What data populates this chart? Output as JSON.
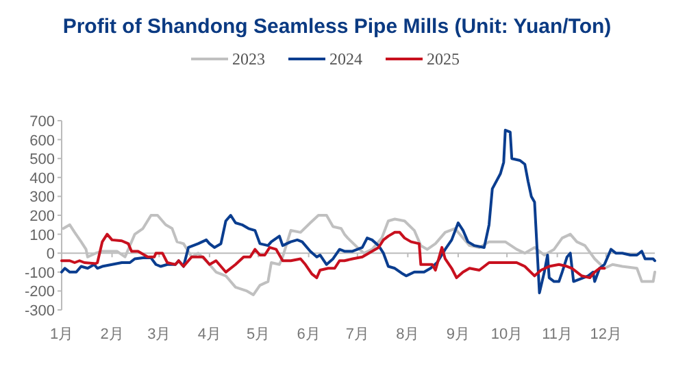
{
  "chart_data": {
    "type": "line",
    "title": "Profit of Shandong Seamless Pipe Mills (Unit: Yuan/Ton)",
    "legend": "top",
    "xlim": [
      "--01-01",
      "--12-31"
    ],
    "ylim": [
      -300,
      700
    ],
    "yticks": [
      -300,
      -200,
      -100,
      0,
      100,
      200,
      300,
      400,
      500,
      600,
      700
    ],
    "xticks": [
      {
        "value": "--01-01",
        "label": "1月"
      },
      {
        "value": "--02-01",
        "label": "2月"
      },
      {
        "value": "--03-01",
        "label": "3月"
      },
      {
        "value": "--04-01",
        "label": "4月"
      },
      {
        "value": "--05-01",
        "label": "5月"
      },
      {
        "value": "--06-01",
        "label": "6月"
      },
      {
        "value": "--07-01",
        "label": "7月"
      },
      {
        "value": "--08-01",
        "label": "8月"
      },
      {
        "value": "--09-01",
        "label": "9月"
      },
      {
        "value": "--10-01",
        "label": "10月"
      },
      {
        "value": "--11-01",
        "label": "11月"
      },
      {
        "value": "--12-01",
        "label": "12月"
      }
    ],
    "series": [
      {
        "name": "2023",
        "color": "#c0c0c0",
        "x": [
          "--01-02",
          "--01-06",
          "--01-09",
          "--01-13",
          "--01-16",
          "--01-17",
          "--01-22",
          "--01-26",
          "--02-04",
          "--02-09",
          "--02-15",
          "--02-20",
          "--02-25",
          "--02-29",
          "--03-05",
          "--03-09",
          "--03-12",
          "--03-16",
          "--03-21",
          "--03-25",
          "--03-31",
          "--04-05",
          "--04-11",
          "--04-17",
          "--04-24",
          "--04-28",
          "--05-02",
          "--05-07",
          "--05-09",
          "--05-14",
          "--05-16",
          "--05-21",
          "--05-27",
          "--06-02",
          "--06-07",
          "--06-12",
          "--06-16",
          "--06-21",
          "--06-23",
          "--06-25",
          "--07-01",
          "--07-05",
          "--07-10",
          "--07-16",
          "--07-20",
          "--07-24",
          "--07-30",
          "--08-05",
          "--08-09",
          "--08-13",
          "--08-18",
          "--08-24",
          "--08-30",
          "--09-04",
          "--09-08",
          "--09-14",
          "--09-20",
          "--09-25",
          "--09-30",
          "--10-07",
          "--10-12",
          "--10-18",
          "--10-24",
          "--10-30",
          "--11-04",
          "--11-09",
          "--11-13",
          "--11-18",
          "--11-24",
          "--11-30",
          "--12-05",
          "--12-11",
          "--12-20",
          "--12-23",
          "--12-30",
          "--12-31"
        ],
        "values": [
          130,
          150,
          110,
          60,
          20,
          -20,
          0,
          10,
          10,
          -20,
          100,
          130,
          200,
          200,
          150,
          130,
          60,
          50,
          -20,
          0,
          -50,
          -100,
          -120,
          -180,
          -200,
          -220,
          -170,
          -150,
          -50,
          -60,
          -20,
          120,
          110,
          160,
          200,
          200,
          140,
          130,
          100,
          80,
          30,
          0,
          20,
          80,
          170,
          180,
          170,
          120,
          40,
          20,
          50,
          110,
          130,
          80,
          40,
          30,
          60,
          60,
          60,
          20,
          0,
          30,
          -10,
          20,
          80,
          100,
          60,
          40,
          -30,
          -80,
          -60,
          -70,
          -80,
          -150,
          -150,
          -100
        ]
      },
      {
        "name": "2024",
        "color": "#0a3d8f",
        "x": [
          "--01-01",
          "--01-03",
          "--01-06",
          "--01-10",
          "--01-13",
          "--01-17",
          "--01-21",
          "--01-23",
          "--01-26",
          "--02-01",
          "--02-07",
          "--02-12",
          "--02-15",
          "--02-20",
          "--02-25",
          "--02-28",
          "--03-02",
          "--03-06",
          "--03-11",
          "--03-13",
          "--03-16",
          "--03-19",
          "--03-25",
          "--03-30",
          "--04-01",
          "--04-04",
          "--04-08",
          "--04-11",
          "--04-14",
          "--04-17",
          "--04-21",
          "--04-25",
          "--04-29",
          "--05-02",
          "--05-07",
          "--05-09",
          "--05-14",
          "--05-16",
          "--05-21",
          "--05-25",
          "--05-28",
          "--06-02",
          "--06-06",
          "--06-08",
          "--06-12",
          "--06-16",
          "--06-20",
          "--06-23",
          "--06-28",
          "--07-04",
          "--07-07",
          "--07-10",
          "--07-14",
          "--07-17",
          "--07-20",
          "--07-24",
          "--07-29",
          "--07-31",
          "--08-05",
          "--08-11",
          "--08-15",
          "--08-19",
          "--08-24",
          "--08-28",
          "--09-01",
          "--09-04",
          "--09-07",
          "--09-11",
          "--09-17",
          "--09-20",
          "--09-22",
          "--09-27",
          "--09-29",
          "--09-30",
          "--10-03",
          "--10-04",
          "--10-09",
          "--10-12",
          "--10-14",
          "--10-16",
          "--10-18",
          "--10-20",
          "--10-21",
          "--10-24",
          "--10-26",
          "--10-27",
          "--10-30",
          "--11-02",
          "--11-04",
          "--11-07",
          "--11-09",
          "--11-11",
          "--11-14",
          "--11-20",
          "--11-23",
          "--11-24",
          "--11-27",
          "--11-30",
          "--12-04",
          "--12-07",
          "--12-11",
          "--12-16",
          "--12-20",
          "--12-23",
          "--12-25",
          "--12-30",
          "--12-31"
        ],
        "values": [
          -100,
          -80,
          -100,
          -100,
          -70,
          -80,
          -60,
          -80,
          -70,
          -60,
          -50,
          -50,
          -30,
          -25,
          -25,
          -60,
          -70,
          -60,
          -60,
          -40,
          -70,
          30,
          50,
          70,
          50,
          30,
          50,
          170,
          200,
          160,
          150,
          130,
          120,
          50,
          40,
          60,
          90,
          40,
          60,
          70,
          60,
          10,
          -20,
          -10,
          -60,
          -30,
          20,
          10,
          10,
          30,
          80,
          70,
          40,
          0,
          -70,
          -80,
          -110,
          -120,
          -100,
          -100,
          -80,
          -50,
          20,
          70,
          160,
          120,
          60,
          40,
          30,
          150,
          340,
          420,
          480,
          650,
          640,
          500,
          490,
          470,
          380,
          300,
          270,
          -50,
          -210,
          -100,
          -10,
          -130,
          -150,
          -150,
          -100,
          -20,
          0,
          -150,
          -140,
          -120,
          -100,
          -150,
          -80,
          -60,
          20,
          0,
          0,
          -10,
          -10,
          10,
          -30,
          -30,
          -40
        ]
      },
      {
        "name": "2025",
        "color": "#c8101e",
        "x": [
          "--01-01",
          "--01-06",
          "--01-09",
          "--01-12",
          "--01-15",
          "--01-22",
          "--01-23",
          "--01-26",
          "--01-29",
          "--02-01",
          "--02-07",
          "--02-11",
          "--02-13",
          "--02-17",
          "--02-23",
          "--02-27",
          "--02-28",
          "--03-03",
          "--03-06",
          "--03-11",
          "--03-13",
          "--03-16",
          "--03-21",
          "--03-28",
          "--04-01",
          "--04-05",
          "--04-11",
          "--04-17",
          "--04-22",
          "--04-26",
          "--04-29",
          "--05-02",
          "--05-05",
          "--05-08",
          "--05-12",
          "--05-16",
          "--05-21",
          "--05-27",
          "--05-30",
          "--06-03",
          "--06-06",
          "--06-08",
          "--06-13",
          "--06-17",
          "--06-20",
          "--06-23",
          "--06-28",
          "--07-04",
          "--07-10",
          "--07-14",
          "--07-17",
          "--07-20",
          "--07-24",
          "--07-27",
          "--07-30",
          "--08-03",
          "--08-08",
          "--08-09",
          "--08-16",
          "--08-18",
          "--08-22",
          "--08-24",
          "--08-28",
          "--08-31",
          "--09-04",
          "--09-08",
          "--09-14",
          "--09-20",
          "--09-25",
          "--09-30",
          "--10-07",
          "--10-12",
          "--10-18",
          "--10-22",
          "--10-27",
          "--11-02",
          "--11-07",
          "--11-10",
          "--11-16",
          "--11-21",
          "--11-24",
          "--11-27",
          "--11-30"
        ],
        "values": [
          -40,
          -40,
          -50,
          -40,
          -50,
          -55,
          -50,
          60,
          100,
          70,
          65,
          50,
          10,
          10,
          -20,
          -20,
          0,
          0,
          -50,
          -60,
          -40,
          -70,
          -20,
          -20,
          -60,
          -40,
          -100,
          -60,
          -20,
          -20,
          20,
          -10,
          -10,
          30,
          20,
          -40,
          -40,
          -30,
          -60,
          -110,
          -130,
          -90,
          -80,
          -80,
          -40,
          -40,
          -30,
          -20,
          10,
          30,
          70,
          90,
          110,
          110,
          80,
          60,
          50,
          -60,
          -60,
          -90,
          30,
          -30,
          -80,
          -130,
          -100,
          -80,
          -90,
          -50,
          -50,
          -50,
          -50,
          -70,
          -120,
          -90,
          -70,
          -60,
          -70,
          -80,
          -120,
          -130,
          -100,
          -80,
          -80
        ]
      }
    ]
  }
}
